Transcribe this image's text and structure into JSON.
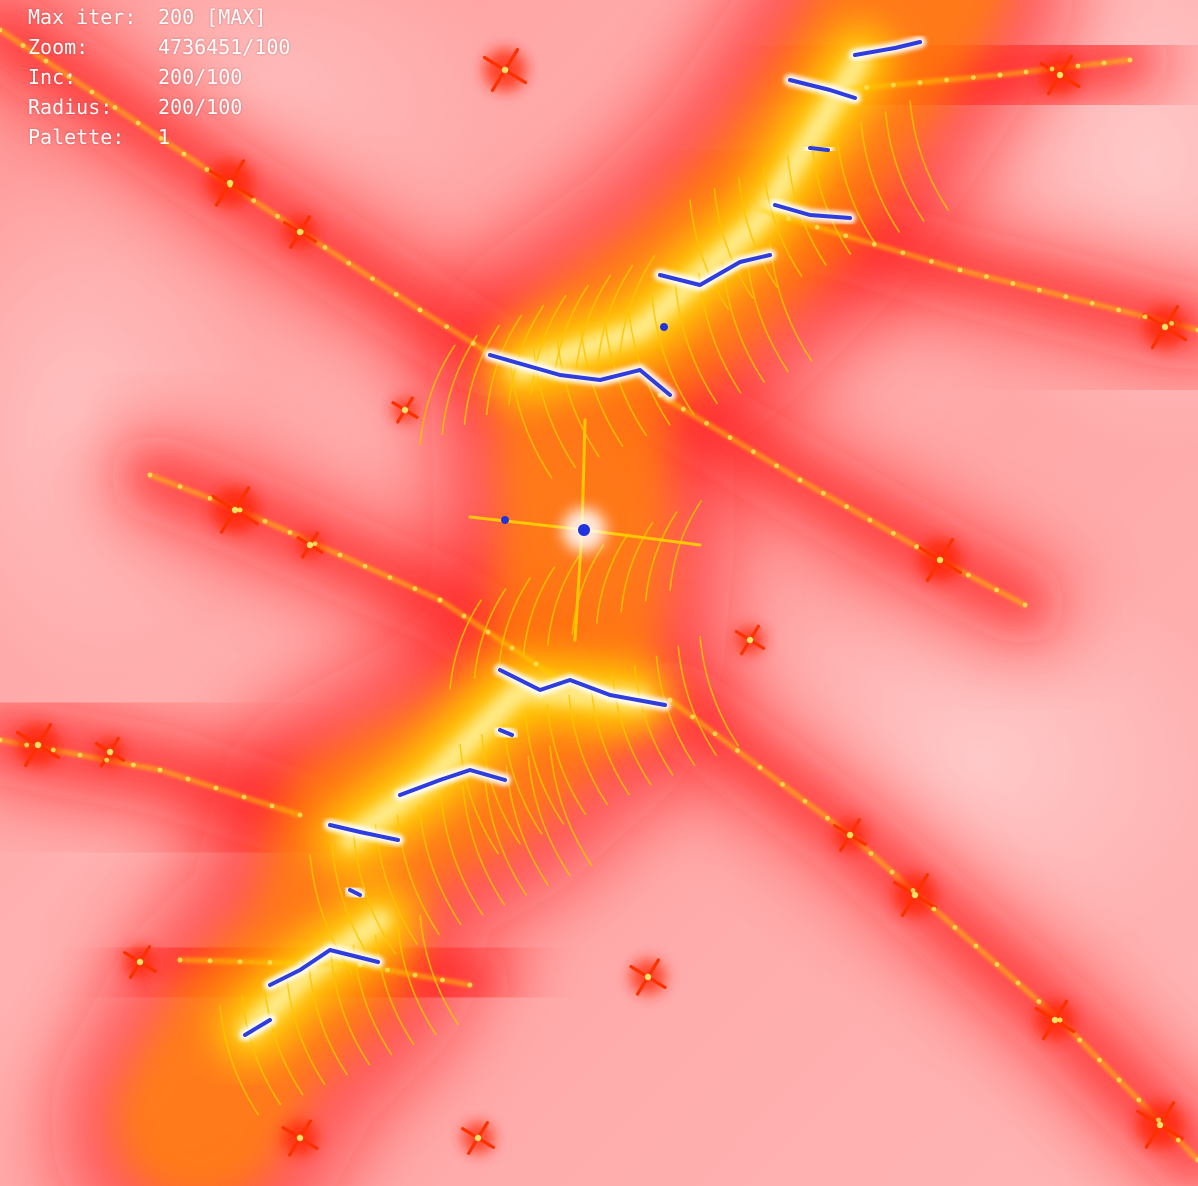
{
  "hud": {
    "rows": [
      {
        "key": "Max iter:",
        "value": "200 [MAX]"
      },
      {
        "key": "Zoom:",
        "value": "4736451/100"
      },
      {
        "key": "Inc:",
        "value": "200/100"
      },
      {
        "key": "Radius:",
        "value": "200/100"
      },
      {
        "key": "Palette:",
        "value": "1"
      }
    ]
  },
  "palette": {
    "background": "#ffb0b0",
    "halo": "#ff1010",
    "inner_glow": "#ff8800",
    "core_glow": "#ffe000",
    "filament": "#ffd000",
    "set_color": "#2233dd",
    "highlight": "#ffffff"
  }
}
